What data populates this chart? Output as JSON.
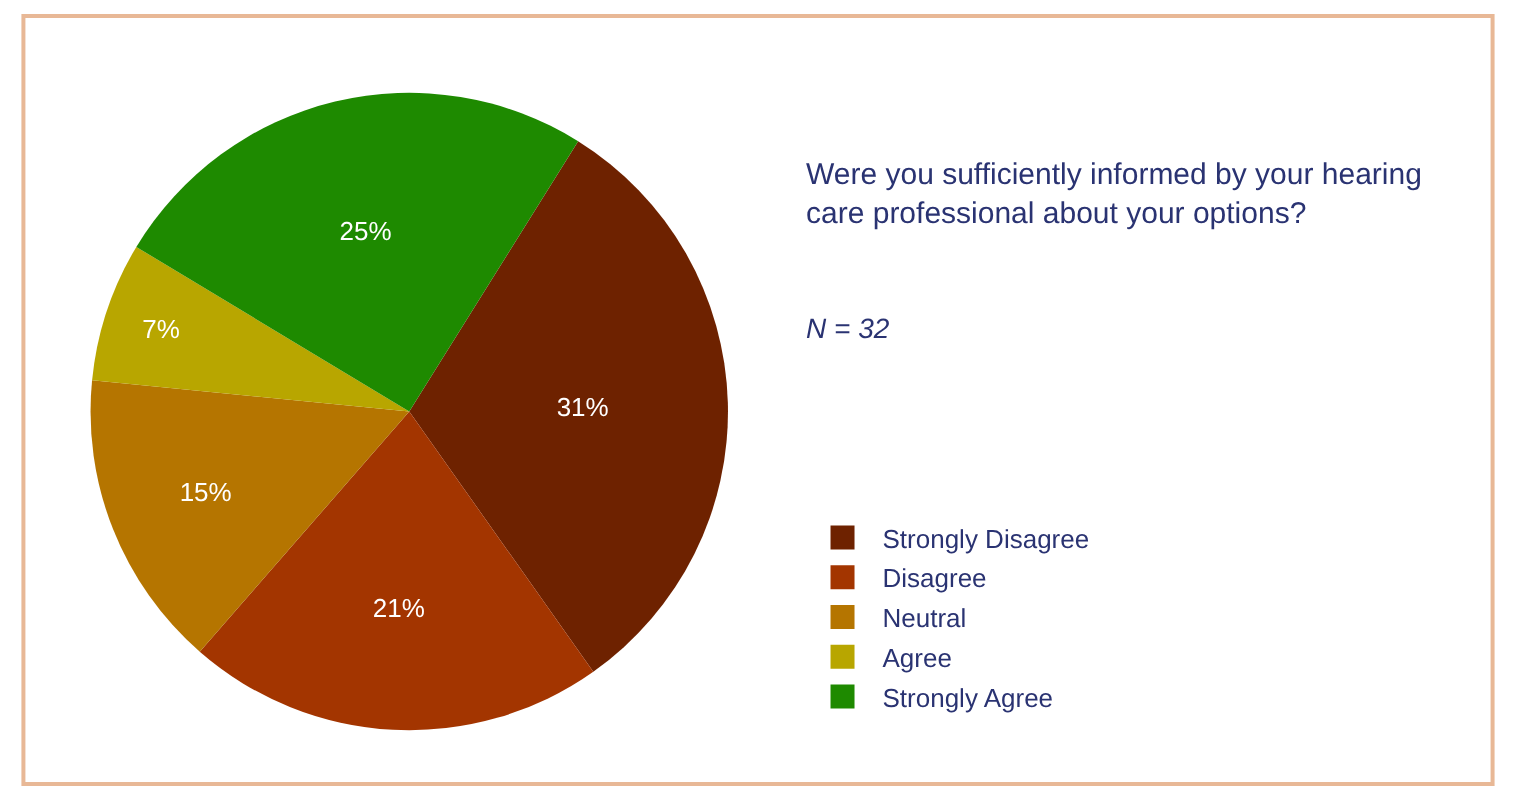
{
  "chart_data": {
    "type": "pie",
    "title": "Were you sufficiently informed by your hearing care professional about your options?",
    "subtitle": "N = 32",
    "categories": [
      "Strongly Disagree",
      "Disagree",
      "Neutral",
      "Agree",
      "Strongly Agree"
    ],
    "values": [
      31,
      21,
      15,
      7,
      25
    ],
    "colors": [
      "#6e2200",
      "#a33500",
      "#b57500",
      "#b8a600",
      "#1e8a00"
    ],
    "value_labels": [
      "31%",
      "21%",
      "15%",
      "7%",
      "25%"
    ],
    "legend": "right"
  }
}
